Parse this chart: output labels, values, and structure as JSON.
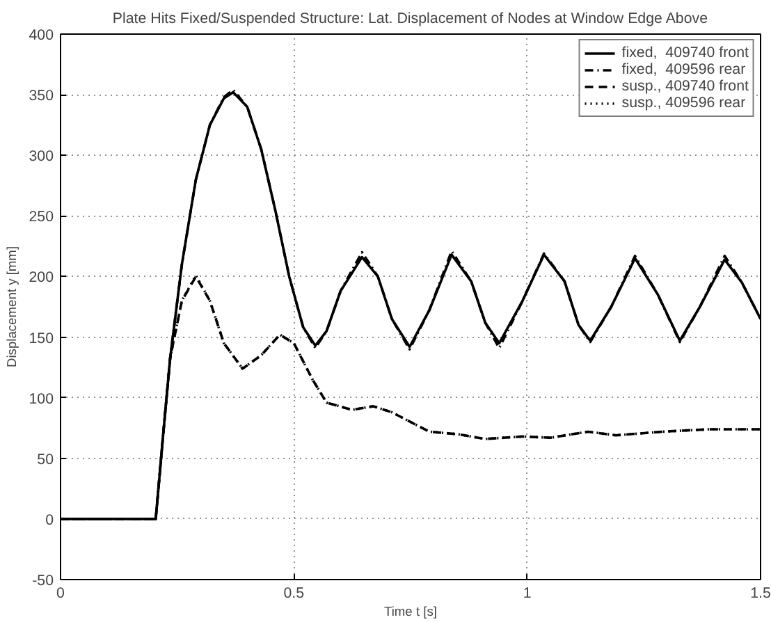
{
  "chart_data": {
    "type": "line",
    "title": "Plate Hits Fixed/Suspended Structure: Lat. Displacement of Nodes at Window Edge Above",
    "xlabel": "Time t [s]",
    "ylabel": "Displacement y [mm]",
    "xlim": [
      0,
      1.5
    ],
    "ylim": [
      -50,
      400
    ],
    "xticks": [
      0,
      0.5,
      1,
      1.5
    ],
    "yticks": [
      -50,
      0,
      50,
      100,
      150,
      200,
      250,
      300,
      350,
      400
    ],
    "grid": true,
    "legend": "top right",
    "series": [
      {
        "name": "fixed,  409740 front",
        "color": "#000000",
        "line_style": "solid",
        "x": [
          0,
          0.204,
          0.22,
          0.235,
          0.26,
          0.29,
          0.32,
          0.35,
          0.37,
          0.4,
          0.43,
          0.46,
          0.49,
          0.52,
          0.546,
          0.57,
          0.6,
          0.646,
          0.68,
          0.71,
          0.748,
          0.79,
          0.838,
          0.88,
          0.91,
          0.94,
          0.99,
          1.036,
          1.08,
          1.11,
          1.135,
          1.18,
          1.231,
          1.28,
          1.327,
          1.37,
          1.423,
          1.46,
          1.5
        ],
        "values": [
          0,
          0,
          70,
          133,
          210,
          280,
          325,
          347,
          352,
          340,
          305,
          255,
          200,
          158,
          143,
          155,
          188,
          216,
          200,
          165,
          142,
          172,
          218,
          196,
          162,
          145,
          180,
          218,
          196,
          160,
          147,
          175,
          215,
          185,
          147,
          175,
          214,
          195,
          165
        ]
      },
      {
        "name": "fixed,  409596 rear",
        "color": "#000000",
        "line_style": "dashdot",
        "x": [
          0,
          0.204,
          0.22,
          0.235,
          0.26,
          0.29,
          0.32,
          0.35,
          0.37,
          0.4,
          0.43,
          0.46,
          0.49,
          0.52,
          0.546,
          0.57,
          0.6,
          0.646,
          0.68,
          0.71,
          0.748,
          0.79,
          0.838,
          0.88,
          0.91,
          0.94,
          0.99,
          1.036,
          1.08,
          1.11,
          1.135,
          1.18,
          1.231,
          1.28,
          1.327,
          1.37,
          1.423,
          1.46,
          1.5
        ],
        "values": [
          0,
          0,
          70,
          133,
          210,
          280,
          325,
          348,
          354,
          340,
          305,
          255,
          200,
          158,
          141,
          155,
          188,
          220,
          200,
          165,
          140,
          172,
          221,
          196,
          162,
          141,
          180,
          219,
          196,
          160,
          146,
          175,
          217,
          185,
          146,
          175,
          217,
          195,
          165
        ]
      },
      {
        "name": "susp., 409740 front",
        "color": "#000000",
        "line_style": "dashed",
        "x": [
          0,
          0.204,
          0.22,
          0.235,
          0.26,
          0.29,
          0.32,
          0.35,
          0.39,
          0.43,
          0.47,
          0.5,
          0.54,
          0.57,
          0.625,
          0.67,
          0.71,
          0.79,
          0.85,
          0.91,
          0.99,
          1.05,
          1.13,
          1.19,
          1.29,
          1.39,
          1.5
        ],
        "values": [
          0,
          0,
          70,
          133,
          180,
          200,
          180,
          145,
          124,
          135,
          152,
          145,
          115,
          96,
          90,
          93,
          88,
          72,
          70,
          66,
          68,
          67,
          72,
          69,
          72,
          74,
          74
        ]
      },
      {
        "name": "susp., 409596 rear",
        "color": "#000000",
        "line_style": "dotted",
        "x": [
          0,
          0.204,
          0.22,
          0.235,
          0.26,
          0.29,
          0.32,
          0.35,
          0.39,
          0.43,
          0.47,
          0.5,
          0.54,
          0.57,
          0.625,
          0.67,
          0.71,
          0.79,
          0.85,
          0.91,
          0.99,
          1.05,
          1.13,
          1.19,
          1.29,
          1.39,
          1.5
        ],
        "values": [
          0,
          0,
          70,
          133,
          180,
          201,
          180,
          145,
          124,
          135,
          152,
          145,
          115,
          96,
          90,
          93,
          88,
          72,
          70,
          66,
          68,
          67,
          72,
          69,
          72,
          74,
          74
        ]
      }
    ]
  }
}
